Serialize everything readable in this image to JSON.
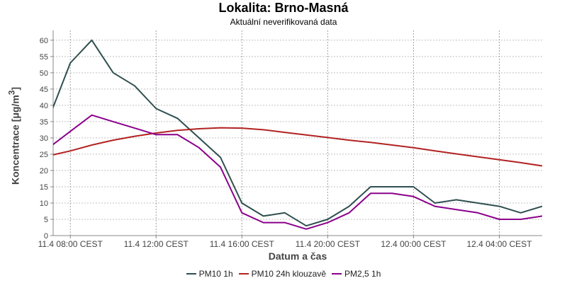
{
  "chart_data": {
    "type": "line",
    "title": "Lokalita: Brno-Masná",
    "subtitle": "Aktuální neverifikovaná data",
    "xlabel": "Datum a čas",
    "ylabel_text": "Koncentrace [μg/m",
    "ylabel_sup": "3",
    "ylabel_close": "]",
    "ylim": [
      0,
      63
    ],
    "yticks": [
      0,
      5,
      10,
      15,
      20,
      25,
      30,
      35,
      40,
      45,
      50,
      55,
      60
    ],
    "xlim": [
      7.2,
      30.0
    ],
    "x_ticks": [
      {
        "x": 8,
        "label": "11.4 08:00 CEST"
      },
      {
        "x": 12,
        "label": "11.4 12:00 CEST"
      },
      {
        "x": 16,
        "label": "11.4 16:00 CEST"
      },
      {
        "x": 20,
        "label": "11.4 20:00 CEST"
      },
      {
        "x": 24,
        "label": "12.4 00:00 CEST"
      },
      {
        "x": 28,
        "label": "12.4 04:00 CEST"
      }
    ],
    "grid": true,
    "legend_position": "bottom",
    "x": [
      7,
      8,
      9,
      10,
      11,
      12,
      13,
      14,
      15,
      16,
      17,
      18,
      19,
      20,
      21,
      22,
      23,
      24,
      25,
      26,
      27,
      28,
      29,
      30
    ],
    "series": [
      {
        "name": "PM10 1h",
        "color": "#2f4f4f",
        "values": [
          36,
          53,
          60,
          50,
          46,
          39,
          36,
          30,
          24,
          10,
          6,
          7,
          3,
          5,
          9,
          15,
          15,
          15,
          10,
          11,
          10,
          9,
          7,
          9
        ]
      },
      {
        "name": "PM10 24h klouzavě",
        "color": "#b22222",
        "values": [
          24.5,
          26,
          27.8,
          29.3,
          30.5,
          31.5,
          32.3,
          32.8,
          33.1,
          33,
          32.5,
          31.7,
          30.9,
          30.1,
          29.3,
          28.6,
          27.8,
          27,
          26,
          25.1,
          24.2,
          23.3,
          22.4,
          21.4
        ]
      },
      {
        "name": "PM2,5 1h",
        "color": "#8b008b",
        "values": [
          27,
          32,
          37,
          35,
          33,
          31,
          31,
          27,
          21,
          7,
          4,
          4,
          2,
          4,
          7,
          13,
          13,
          12,
          9,
          8,
          7,
          5,
          5,
          6
        ]
      }
    ]
  }
}
